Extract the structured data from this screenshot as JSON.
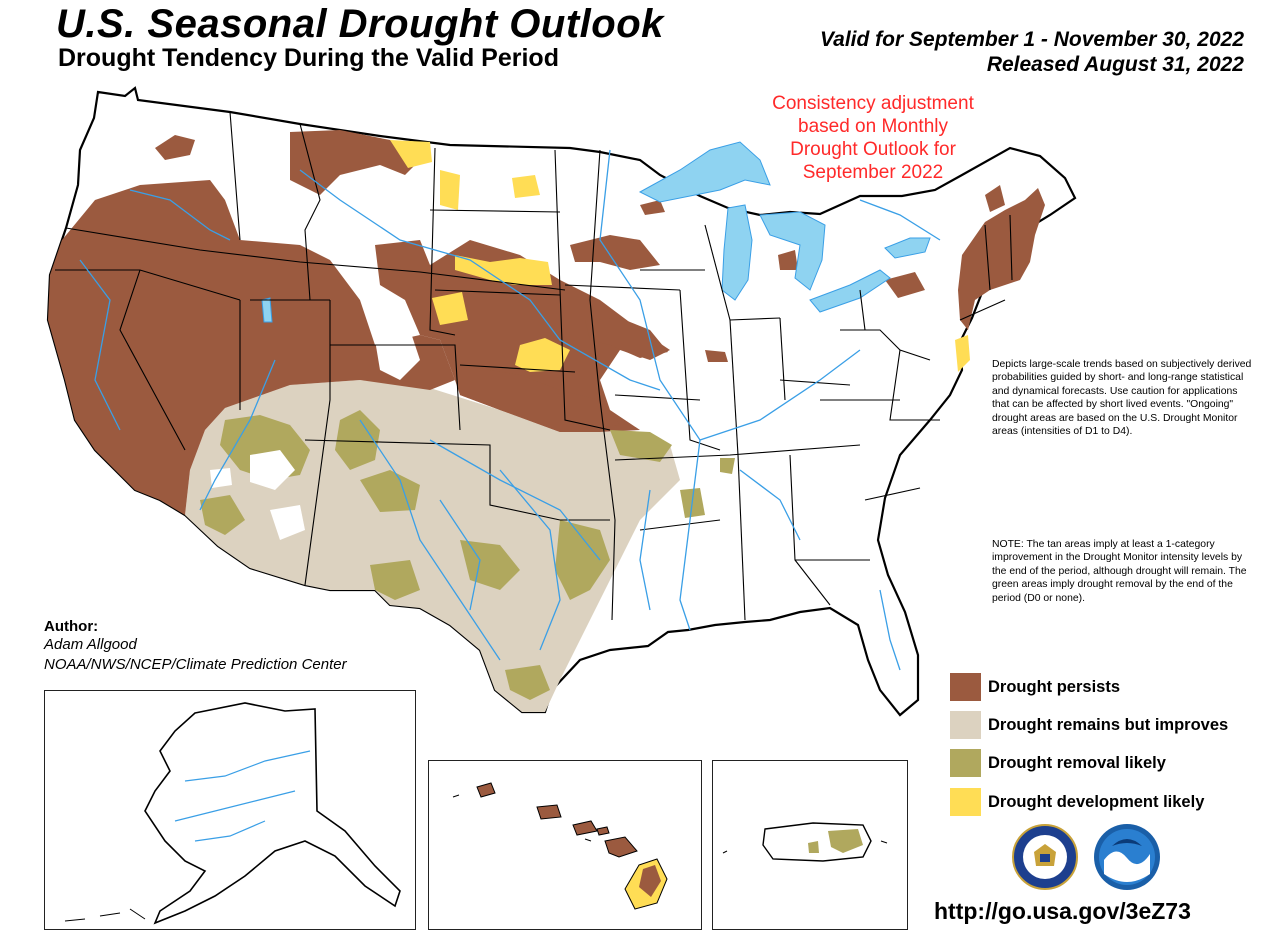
{
  "header": {
    "title": "U.S. Seasonal Drought Outlook",
    "subtitle": "Drought Tendency During the Valid Period",
    "valid": "Valid for September 1 - November 30, 2022",
    "released": "Released August 31, 2022"
  },
  "consistency_note": [
    "Consistency adjustment",
    "based on Monthly",
    "Drought Outlook for",
    "September 2022"
  ],
  "description": "Depicts large-scale trends based on subjectively derived probabilities guided by short- and long-range statistical and dynamical forecasts. Use caution for applications that can be affected by short lived events. \"Ongoing\" drought areas are based on the U.S. Drought Monitor areas (intensities of D1 to D4).",
  "note": "NOTE: The tan areas imply at least a 1-category improvement in the Drought Monitor intensity levels by the end of the period, although drought will remain. The green areas imply drought removal by the end of the period (D0 or none).",
  "author": {
    "label": "Author:",
    "name": "Adam Allgood",
    "org": "NOAA/NWS/NCEP/Climate Prediction Center"
  },
  "legend": [
    {
      "label": "Drought persists",
      "color": "#9b5a3f"
    },
    {
      "label": "Drought remains but improves",
      "color": "#dcd2c0"
    },
    {
      "label": "Drought removal likely",
      "color": "#b0a85e"
    },
    {
      "label": "Drought development likely",
      "color": "#ffdd55"
    }
  ],
  "url": "http://go.usa.gov/3eZ73",
  "map_colors": {
    "water": "#8fd3f1",
    "rivers": "#3a9fe6",
    "borders": "#000000"
  },
  "logos": [
    "dept-of-commerce-seal-icon",
    "noaa-logo-icon"
  ]
}
